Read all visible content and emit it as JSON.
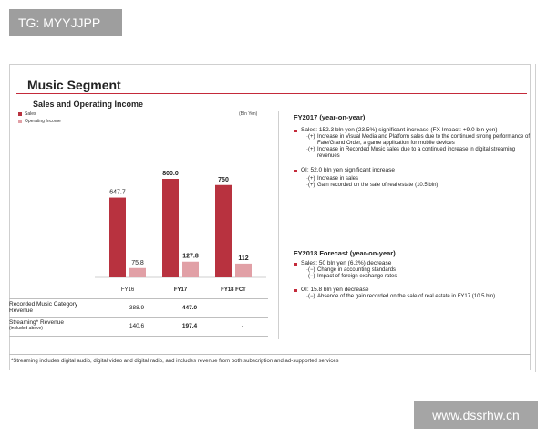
{
  "tag": "TG: MYYJJPP",
  "watermark": "www.dssrhw.cn",
  "slide": {
    "title": "Music Segment",
    "subtitle": "Sales and Operating Income",
    "unit": "(Bln Yen)"
  },
  "chart_data": {
    "type": "bar",
    "title": "Sales and Operating Income",
    "categories": [
      "FY16",
      "FY17",
      "FY18 FCT"
    ],
    "series": [
      {
        "name": "Sales",
        "color": "#b8323f",
        "values": [
          647.7,
          800.0,
          750
        ],
        "labels": [
          "647.7",
          "800.0",
          "750"
        ]
      },
      {
        "name": "Operating Income",
        "color": "#e1a0a6",
        "values": [
          75.8,
          127.8,
          112
        ],
        "labels": [
          "75.8",
          "127.8",
          "112"
        ]
      }
    ],
    "ylabel": "Bln Yen",
    "ylim": [
      0,
      850
    ],
    "bold_categories": [
      false,
      true,
      true
    ]
  },
  "table": {
    "rows": [
      {
        "label": "Recorded Music Category",
        "label2": "Revenue",
        "values": [
          "388.9",
          "447.0",
          "-"
        ]
      },
      {
        "label": "Streaming* Revenue",
        "label2": "(included above)",
        "values": [
          "140.6",
          "197.4",
          "-"
        ]
      }
    ]
  },
  "right": {
    "fy17_head": "FY2017 (year-on-year)",
    "fy17_sales": "Sales: 152.3 bln yen (23.5%) significant increase (FX Impact: +9.0 bln yen)",
    "fy17_sub1_mark": "·(+)",
    "fy17_sub1": "Increase in Visual Media and Platform sales due to the continued strong performance of Fate/Grand Order, a game application for mobile devices",
    "fy17_sub2_mark": "·(+)",
    "fy17_sub2": "Increase in Recorded Music sales due to a continued increase in digital streaming revenues",
    "fy17_oi": "OI: 52.0 bln yen significant increase",
    "fy17_oi_sub1_mark": "·(+)",
    "fy17_oi_sub1": "Increase in sales",
    "fy17_oi_sub2_mark": "·(+)",
    "fy17_oi_sub2": "Gain recorded on the sale of real estate (10.5 bln)",
    "fy18_head": "FY2018 Forecast (year-on-year)",
    "fy18_sales": "Sales: 50 bln yen (6.2%) decrease",
    "fy18_sub1_mark": "·(−)",
    "fy18_sub1": "Change in accounting standards",
    "fy18_sub2_mark": "·(−)",
    "fy18_sub2": "Impact of foreign exchange rates",
    "fy18_oi": "OI: 15.8 bln yen decrease",
    "fy18_oi_sub1_mark": "·(−)",
    "fy18_oi_sub1": "Absence of the gain recorded on the sale of real estate in FY17 (10.5 bln)"
  },
  "footnote": "*Streaming includes digital audio, digital video and digital radio, and includes revenue from both subscription and ad-supported services"
}
